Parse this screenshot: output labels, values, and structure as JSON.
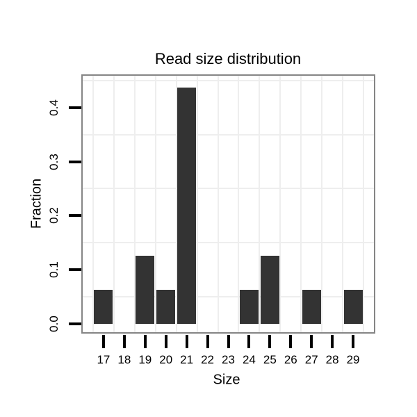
{
  "chart_data": {
    "type": "bar",
    "title": "Read size distribution",
    "xlabel": "Size",
    "ylabel": "Fraction",
    "categories": [
      "17",
      "18",
      "19",
      "20",
      "21",
      "22",
      "23",
      "24",
      "25",
      "26",
      "27",
      "28",
      "29"
    ],
    "values": [
      0.0625,
      0,
      0.125,
      0.0625,
      0.4375,
      0,
      0,
      0.0625,
      0.125,
      0,
      0.0625,
      0,
      0.0625
    ],
    "ytick_labels": [
      "0.0",
      "0.1",
      "0.2",
      "0.3",
      "0.4"
    ],
    "ytick_values": [
      0.0,
      0.1,
      0.2,
      0.3,
      0.4
    ],
    "ylim": [
      -0.016,
      0.459
    ],
    "minor_hgridlines": [
      0.05,
      0.15,
      0.25,
      0.35,
      0.45
    ],
    "grid": "minor gridlines only, light gray on white panel",
    "legend": "none",
    "colors": {
      "bar_fill": "#333333",
      "panel_border": "#858585",
      "gridline": "#eeeeee",
      "tick": "#000000",
      "text": "#000000"
    }
  }
}
